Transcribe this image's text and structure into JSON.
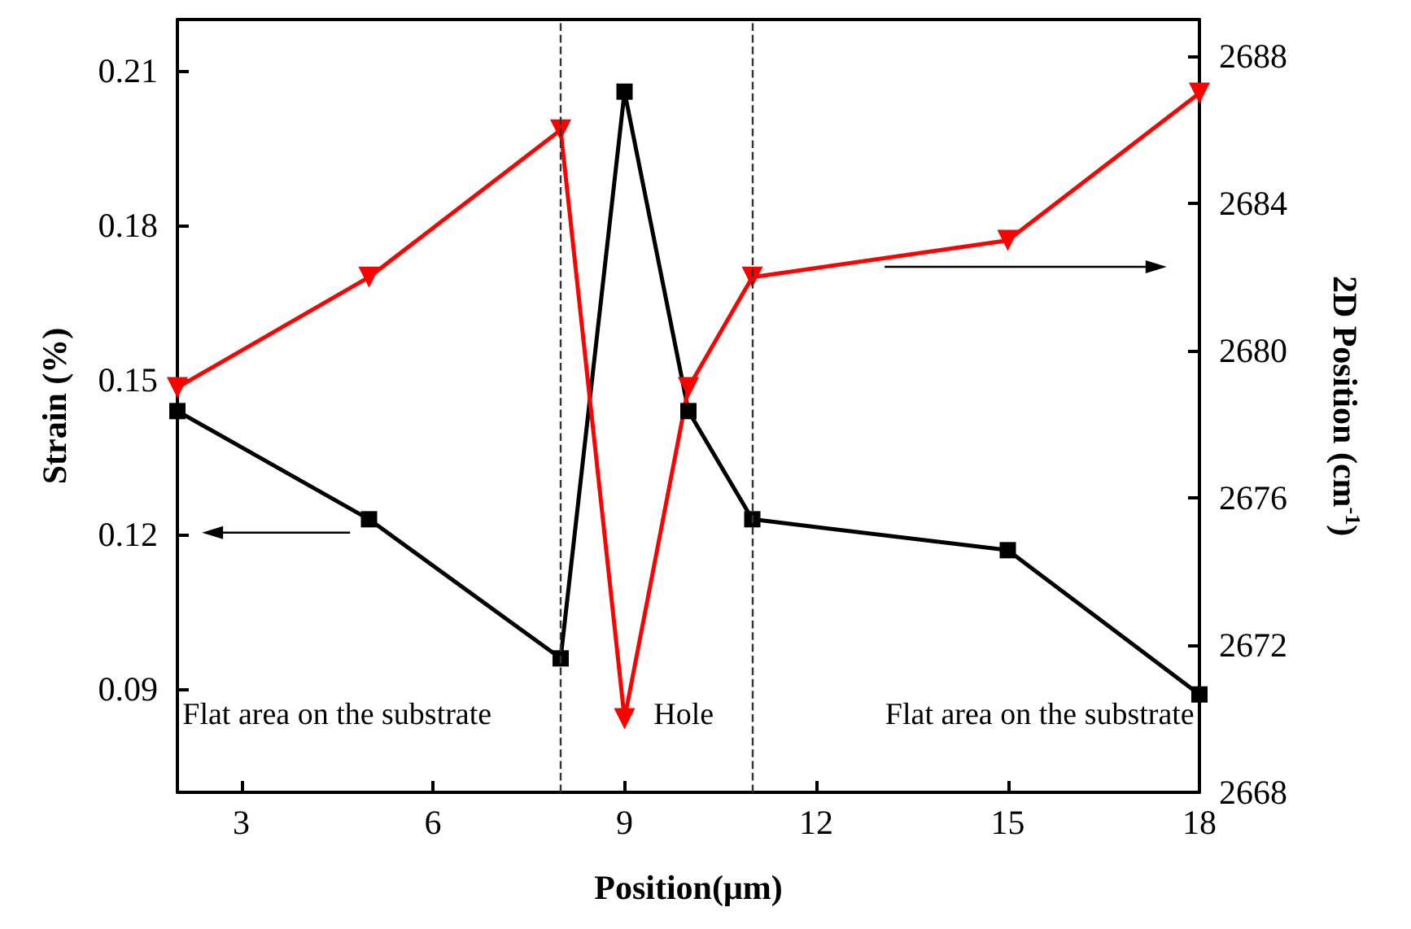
{
  "chart_data": {
    "type": "line",
    "xlabel": "Position(μm)",
    "ylabel": "Strain (%)",
    "y2label": "2D Position (cm$^{-1}$)",
    "xlim": [
      2,
      18
    ],
    "xticks": [
      3,
      6,
      9,
      12,
      15,
      18
    ],
    "ylim": [
      0.07,
      0.22
    ],
    "yticks": [
      0.09,
      0.12,
      0.15,
      0.18,
      0.21
    ],
    "y2lim": [
      2668,
      2689
    ],
    "y2ticks": [
      2668,
      2672,
      2676,
      2680,
      2684,
      2688
    ],
    "grid": false,
    "line_style": "solid",
    "x": [
      2,
      5,
      8,
      9,
      10,
      11,
      15,
      18
    ],
    "series": [
      {
        "color": "#000000",
        "marker": "square",
        "values": [
          0.144,
          0.123,
          0.096,
          0.206,
          0.144,
          0.123,
          0.117,
          0.089
        ]
      },
      {
        "color": "#ff0000",
        "marker": "triangle",
        "axis": "y2",
        "values": [
          2679.0,
          2682.0,
          2686.0,
          2670.0,
          2679.0,
          2682.0,
          2683.0,
          2687.0
        ]
      }
    ],
    "ref_lines": [
      {
        "axis": "x",
        "value": 8,
        "color": "#333333",
        "line_style": "dashed"
      },
      {
        "axis": "x",
        "value": 11,
        "color": "#333333",
        "line_style": "dashed"
      }
    ],
    "annotations": [
      "Flat area on the substrate",
      "Hole",
      "Flat area on the substrate"
    ]
  }
}
